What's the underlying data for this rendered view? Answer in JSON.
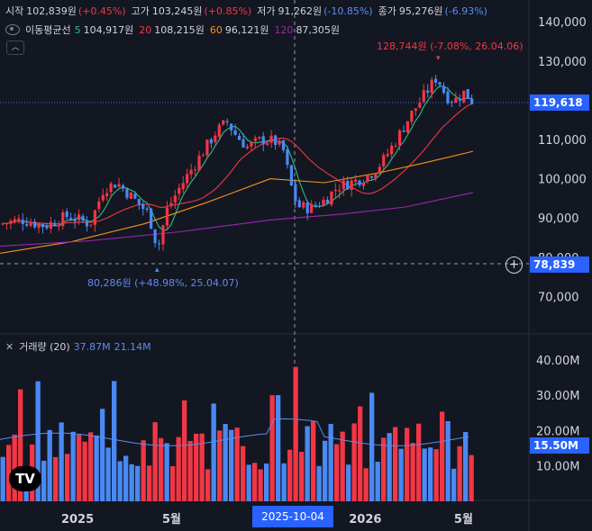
{
  "ohlc": {
    "open_label": "시작",
    "open": "102,839원",
    "open_chg": "(+0.45%)",
    "high_label": "고가",
    "high": "103,245원",
    "high_chg": "(+0.85%)",
    "low_label": "저가",
    "low": "91,262원",
    "low_chg": "(-10.85%)",
    "close_label": "종가",
    "close": "95,276원",
    "close_chg": "(-6.93%)"
  },
  "ma": {
    "name": "이동평균선",
    "p5": "5",
    "v5": "104,917원",
    "p20": "20",
    "v20": "108,215원",
    "p60": "60",
    "v60": "96,121원",
    "p120": "120",
    "v120": "87,305원"
  },
  "volume": {
    "name": "거래량 (20)",
    "v1": "37.87M",
    "v2": "21.14M"
  },
  "tags": {
    "last_price": "119,618",
    "crosshair_price": "78,839",
    "volume_last": "15.50M",
    "crosshair_date": "2025-10-04"
  },
  "annotations": {
    "high": "128,744원 (-7.08%, 26.04.06)",
    "low": "80,286원 (+48.98%, 25.04.07)"
  },
  "logo": "TV",
  "price_axis": [
    "140,000",
    "130,000",
    "120,000",
    "110,000",
    "100,000",
    "90,000",
    "80,000",
    "70,000"
  ],
  "volume_axis": [
    "40.00M",
    "30.00M",
    "20.00M",
    "10.00M"
  ],
  "time_axis": [
    {
      "label": "2025",
      "x": 0.131
    },
    {
      "label": "5월",
      "x": 0.29
    },
    {
      "label": "2026",
      "x": 0.617
    },
    {
      "label": "5월",
      "x": 0.783
    }
  ],
  "colors": {
    "up": "#f23645",
    "down": "#4a89f3",
    "ma5": "#2ebd85",
    "ma20": "#f23645",
    "ma60": "#f7931a",
    "ma120": "#9c27b0"
  }
}
